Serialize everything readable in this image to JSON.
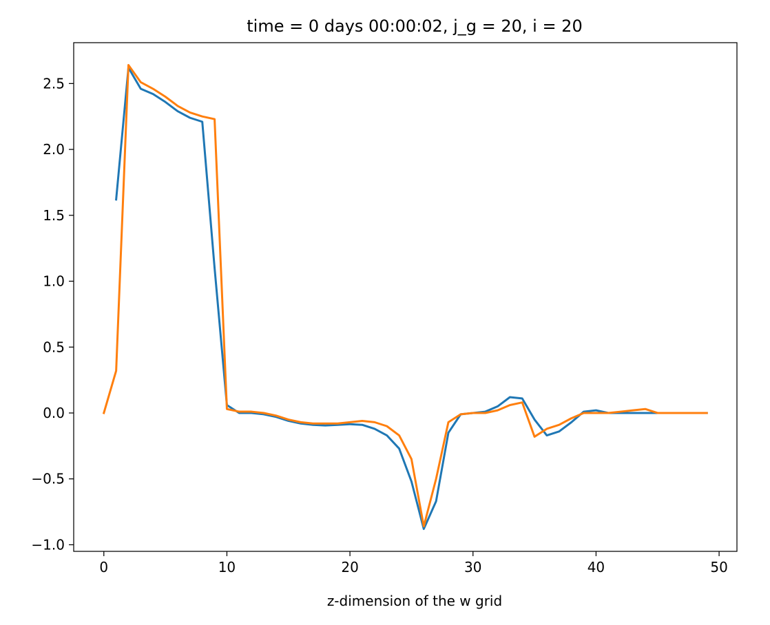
{
  "chart_data": {
    "type": "line",
    "title": "time = 0 days 00:00:02, j_g = 20, i = 20",
    "xlabel": "z-dimension of the w grid",
    "ylabel": "",
    "xlim": [
      -2.45,
      51.45
    ],
    "ylim": [
      -1.05,
      2.81
    ],
    "xticks": [
      0,
      10,
      20,
      30,
      40,
      50
    ],
    "yticks": [
      -1.0,
      -0.5,
      0.0,
      0.5,
      1.0,
      1.5,
      2.0,
      2.5
    ],
    "ytick_labels": [
      "−1.0",
      "−0.5",
      "0.0",
      "0.5",
      "1.0",
      "1.5",
      "2.0",
      "2.5"
    ],
    "grid": false,
    "legend": false,
    "series": [
      {
        "color": "#1f77b4",
        "x": [
          1,
          2,
          3,
          4,
          5,
          6,
          7,
          8,
          9,
          10,
          11,
          12,
          13,
          14,
          15,
          16,
          17,
          18,
          19,
          20,
          21,
          22,
          23,
          24,
          25,
          26,
          27,
          28,
          29,
          30,
          31,
          32,
          33,
          34,
          35,
          36,
          37,
          38,
          39,
          40,
          41,
          42,
          43,
          44,
          45,
          46,
          47,
          48,
          49
        ],
        "y": [
          1.62,
          2.62,
          2.46,
          2.42,
          2.36,
          2.29,
          2.24,
          2.21,
          1.1,
          0.06,
          0.0,
          0.0,
          -0.01,
          -0.03,
          -0.06,
          -0.08,
          -0.09,
          -0.095,
          -0.09,
          -0.085,
          -0.09,
          -0.12,
          -0.17,
          -0.27,
          -0.52,
          -0.88,
          -0.67,
          -0.15,
          -0.01,
          0.0,
          0.01,
          0.05,
          0.12,
          0.11,
          -0.05,
          -0.17,
          -0.14,
          -0.07,
          0.01,
          0.02,
          0.0,
          0.0,
          0.0,
          0.0,
          0.0,
          0.0,
          0.0,
          0.0,
          0.0
        ]
      },
      {
        "color": "#ff7f0e",
        "x": [
          0,
          1,
          2,
          3,
          4,
          5,
          6,
          7,
          8,
          9,
          10,
          11,
          12,
          13,
          14,
          15,
          16,
          17,
          18,
          19,
          20,
          21,
          22,
          23,
          24,
          25,
          26,
          27,
          28,
          29,
          30,
          31,
          32,
          33,
          34,
          35,
          36,
          37,
          38,
          39,
          40,
          41,
          42,
          43,
          44,
          45,
          46,
          47,
          48,
          49
        ],
        "y": [
          0.0,
          0.32,
          2.64,
          2.51,
          2.46,
          2.4,
          2.33,
          2.28,
          2.25,
          2.23,
          0.03,
          0.01,
          0.01,
          0.0,
          -0.02,
          -0.05,
          -0.07,
          -0.08,
          -0.08,
          -0.08,
          -0.07,
          -0.06,
          -0.07,
          -0.1,
          -0.17,
          -0.35,
          -0.86,
          -0.5,
          -0.07,
          -0.01,
          0.0,
          0.0,
          0.02,
          0.06,
          0.08,
          -0.18,
          -0.12,
          -0.09,
          -0.04,
          0.0,
          0.0,
          0.0,
          0.01,
          0.02,
          0.03,
          0.0,
          0.0,
          0.0,
          0.0,
          0.0
        ]
      }
    ]
  }
}
